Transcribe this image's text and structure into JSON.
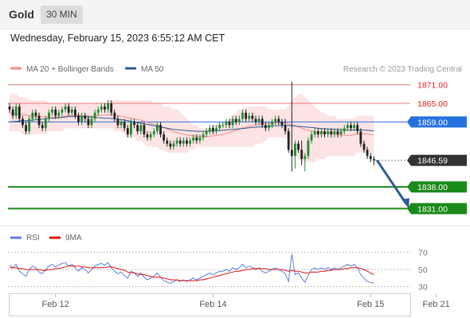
{
  "header": {
    "title": "Gold",
    "timeframe": "30 MIN",
    "datetime": "Wednesday, February 15, 2023 6:55:12 AM CET"
  },
  "colors": {
    "ma20": "#f08c8c",
    "bollinger_fill": "#fde0e0",
    "ma50": "#2e5a96",
    "resistance": "#e87777",
    "support": "#1a8a1a",
    "pivot": "#2671e0",
    "last_price": "#333333",
    "rsi": "#5b7fd6",
    "rsi_ma": "#dd1111",
    "candle_up": "#1f8a2e",
    "candle_down": "#222222",
    "arrow": "#2e5a96"
  },
  "chart_data": [
    {
      "type": "candlestick",
      "legend": [
        {
          "label": "MA 20 + Bollinger Bands",
          "color_key": "ma20"
        },
        {
          "label": "MA 50",
          "color_key": "ma50"
        }
      ],
      "legend_placement": "top-left",
      "watermark": "Research © 2023 Trading Central",
      "ylim": [
        1827,
        1874
      ],
      "x_ticks": [
        {
          "label": "Feb 12",
          "index": 14
        },
        {
          "label": "Feb 14",
          "index": 62
        },
        {
          "label": "Feb 15",
          "index": 110
        },
        {
          "label": "Feb 21",
          "index": 130
        }
      ],
      "levels": [
        {
          "name": "resistance-2",
          "value": 1871.0,
          "label": "1871.00",
          "style": "resistance"
        },
        {
          "name": "resistance-1",
          "value": 1865.0,
          "label": "1865.00",
          "style": "resistance"
        },
        {
          "name": "pivot",
          "value": 1859.0,
          "label": "1859.00",
          "style": "pivot"
        },
        {
          "name": "last-price",
          "value": 1846.59,
          "label": "1846.59",
          "style": "last"
        },
        {
          "name": "support-1",
          "value": 1838.0,
          "label": "1838.00",
          "style": "support"
        },
        {
          "name": "support-2",
          "value": 1831.0,
          "label": "1831.00",
          "style": "support"
        }
      ],
      "close": [
        1863,
        1861,
        1864,
        1860,
        1858,
        1856,
        1860,
        1862,
        1861,
        1858,
        1857,
        1860,
        1862,
        1863,
        1861,
        1862,
        1863,
        1864,
        1862,
        1863,
        1861,
        1859,
        1861,
        1860,
        1858,
        1860,
        1862,
        1863,
        1864,
        1863,
        1865,
        1862,
        1860,
        1858,
        1859,
        1857,
        1855,
        1859,
        1858,
        1856,
        1858,
        1855,
        1854,
        1855,
        1856,
        1858,
        1855,
        1853,
        1852,
        1851,
        1852,
        1853,
        1852,
        1853,
        1852,
        1853,
        1854,
        1853,
        1854,
        1855,
        1856,
        1857,
        1856,
        1857,
        1858,
        1858,
        1859,
        1858,
        1860,
        1859,
        1860,
        1862,
        1860,
        1861,
        1860,
        1859,
        1860,
        1858,
        1857,
        1858,
        1859,
        1860,
        1859,
        1858,
        1856,
        1850,
        1848,
        1852,
        1850,
        1847,
        1848,
        1853,
        1855,
        1856,
        1855,
        1856,
        1855,
        1856,
        1855,
        1856,
        1855,
        1856,
        1857,
        1858,
        1857,
        1858,
        1856,
        1852,
        1850,
        1848,
        1847,
        1846.59
      ],
      "open": [
        1864,
        1863,
        1861,
        1864,
        1860,
        1858,
        1856,
        1860,
        1862,
        1861,
        1858,
        1857,
        1860,
        1862,
        1863,
        1861,
        1862,
        1863,
        1864,
        1862,
        1863,
        1861,
        1859,
        1861,
        1860,
        1858,
        1860,
        1862,
        1863,
        1864,
        1863,
        1865,
        1862,
        1860,
        1858,
        1859,
        1857,
        1855,
        1859,
        1858,
        1856,
        1858,
        1855,
        1854,
        1855,
        1856,
        1858,
        1855,
        1853,
        1852,
        1851,
        1852,
        1853,
        1852,
        1853,
        1852,
        1853,
        1854,
        1853,
        1854,
        1855,
        1856,
        1857,
        1856,
        1857,
        1858,
        1858,
        1859,
        1858,
        1860,
        1859,
        1860,
        1862,
        1860,
        1861,
        1860,
        1859,
        1860,
        1858,
        1857,
        1858,
        1859,
        1860,
        1859,
        1858,
        1856,
        1850,
        1848,
        1852,
        1850,
        1847,
        1848,
        1853,
        1855,
        1856,
        1855,
        1856,
        1855,
        1856,
        1855,
        1856,
        1855,
        1856,
        1857,
        1858,
        1857,
        1858,
        1856,
        1852,
        1850,
        1848,
        1847
      ],
      "high": [
        1865,
        1864,
        1865,
        1865,
        1861,
        1859,
        1861,
        1863,
        1863,
        1862,
        1859,
        1861,
        1863,
        1864,
        1864,
        1863,
        1864,
        1865,
        1865,
        1864,
        1864,
        1862,
        1862,
        1862,
        1861,
        1861,
        1863,
        1864,
        1865,
        1865,
        1866,
        1866,
        1863,
        1861,
        1860,
        1860,
        1858,
        1860,
        1860,
        1859,
        1859,
        1859,
        1856,
        1856,
        1857,
        1859,
        1859,
        1856,
        1854,
        1853,
        1853,
        1854,
        1854,
        1854,
        1854,
        1854,
        1855,
        1855,
        1855,
        1856,
        1857,
        1858,
        1858,
        1858,
        1859,
        1859,
        1860,
        1860,
        1861,
        1861,
        1861,
        1863,
        1863,
        1862,
        1862,
        1861,
        1861,
        1861,
        1859,
        1859,
        1860,
        1861,
        1861,
        1860,
        1860,
        1857,
        1872,
        1853,
        1853,
        1853,
        1849,
        1854,
        1856,
        1857,
        1857,
        1857,
        1857,
        1857,
        1857,
        1857,
        1857,
        1857,
        1858,
        1859,
        1859,
        1859,
        1859,
        1857,
        1853,
        1851,
        1849,
        1848
      ],
      "low": [
        1862,
        1860,
        1860,
        1859,
        1857,
        1855,
        1855,
        1859,
        1860,
        1857,
        1856,
        1856,
        1859,
        1861,
        1860,
        1860,
        1861,
        1862,
        1861,
        1861,
        1860,
        1858,
        1858,
        1859,
        1857,
        1857,
        1859,
        1861,
        1862,
        1862,
        1862,
        1861,
        1859,
        1857,
        1857,
        1856,
        1854,
        1854,
        1857,
        1855,
        1855,
        1854,
        1853,
        1853,
        1854,
        1855,
        1854,
        1852,
        1851,
        1850,
        1850,
        1851,
        1851,
        1851,
        1851,
        1851,
        1852,
        1852,
        1852,
        1853,
        1854,
        1855,
        1855,
        1855,
        1856,
        1857,
        1857,
        1857,
        1857,
        1858,
        1858,
        1859,
        1859,
        1859,
        1859,
        1858,
        1858,
        1857,
        1856,
        1856,
        1857,
        1858,
        1858,
        1857,
        1855,
        1849,
        1843,
        1844,
        1849,
        1845,
        1843,
        1847,
        1852,
        1854,
        1854,
        1854,
        1854,
        1854,
        1854,
        1854,
        1854,
        1854,
        1855,
        1856,
        1856,
        1856,
        1855,
        1851,
        1849,
        1847,
        1846,
        1845
      ],
      "ma20": [
        1861.9,
        1861.8,
        1861.7,
        1861.6,
        1861.4,
        1861.2,
        1861.1,
        1861.0,
        1860.9,
        1860.8,
        1860.7,
        1860.6,
        1860.6,
        1860.6,
        1860.6,
        1860.6,
        1860.7,
        1860.9,
        1861.0,
        1861.1,
        1861.1,
        1861.1,
        1861.0,
        1861.0,
        1860.9,
        1860.9,
        1861.0,
        1861.1,
        1861.2,
        1861.2,
        1861.3,
        1861.3,
        1861.2,
        1861.0,
        1860.9,
        1860.6,
        1860.3,
        1860.2,
        1860.0,
        1859.8,
        1859.6,
        1859.2,
        1858.9,
        1858.5,
        1858.2,
        1858.0,
        1857.6,
        1857.2,
        1856.8,
        1856.3,
        1855.9,
        1855.6,
        1855.3,
        1855.0,
        1854.8,
        1854.6,
        1854.5,
        1854.4,
        1854.3,
        1854.3,
        1854.3,
        1854.4,
        1854.5,
        1854.6,
        1854.8,
        1855.0,
        1855.3,
        1855.6,
        1856.0,
        1856.3,
        1856.6,
        1857.0,
        1857.3,
        1857.6,
        1857.8,
        1858.0,
        1858.2,
        1858.4,
        1858.5,
        1858.6,
        1858.6,
        1858.7,
        1858.7,
        1858.7,
        1858.7,
        1858.4,
        1858.0,
        1857.8,
        1857.4,
        1857.0,
        1856.6,
        1856.3,
        1856.1,
        1855.9,
        1855.8,
        1855.6,
        1855.5,
        1855.4,
        1855.2,
        1855.1,
        1854.9,
        1854.8,
        1854.7,
        1854.6,
        1854.7,
        1854.9,
        1855.1,
        1855.1,
        1855.1,
        1855.1,
        1855.0,
        1854.8
      ],
      "bb_upper": [
        1868,
        1868,
        1868,
        1867,
        1867,
        1867,
        1866,
        1866,
        1866,
        1866,
        1866,
        1866,
        1865,
        1865,
        1865,
        1865,
        1865,
        1865,
        1865,
        1865,
        1865,
        1865,
        1865,
        1865,
        1865,
        1865,
        1865,
        1865,
        1865,
        1865,
        1866,
        1866,
        1866,
        1866,
        1866,
        1866,
        1866,
        1866,
        1866,
        1866,
        1866,
        1866,
        1866,
        1866,
        1865,
        1865,
        1865,
        1864,
        1864,
        1864,
        1863,
        1863,
        1862,
        1861,
        1860,
        1859,
        1858,
        1858,
        1857,
        1857,
        1857,
        1857,
        1858,
        1858,
        1858,
        1859,
        1859,
        1860,
        1861,
        1862,
        1863,
        1863,
        1864,
        1864,
        1864,
        1864,
        1864,
        1864,
        1864,
        1863,
        1863,
        1863,
        1863,
        1863,
        1863,
        1864,
        1866,
        1867,
        1868,
        1868,
        1867,
        1866,
        1865,
        1864,
        1863,
        1862,
        1862,
        1861,
        1861,
        1861,
        1860,
        1860,
        1860,
        1860,
        1860,
        1860,
        1861,
        1861,
        1861,
        1861,
        1861,
        1861
      ],
      "bb_lower": [
        1856,
        1856,
        1856,
        1856,
        1855,
        1855,
        1855,
        1855,
        1855,
        1855,
        1855,
        1855,
        1856,
        1856,
        1856,
        1856,
        1856,
        1857,
        1857,
        1857,
        1857,
        1857,
        1857,
        1857,
        1857,
        1857,
        1857,
        1857,
        1857,
        1857,
        1857,
        1857,
        1856,
        1856,
        1856,
        1855,
        1854,
        1854,
        1854,
        1853,
        1853,
        1852,
        1851,
        1851,
        1851,
        1851,
        1850,
        1850,
        1849,
        1849,
        1849,
        1849,
        1849,
        1849,
        1849,
        1850,
        1850,
        1851,
        1851,
        1851,
        1851,
        1851,
        1851,
        1851,
        1851,
        1851,
        1851,
        1851,
        1851,
        1851,
        1851,
        1851,
        1851,
        1851,
        1851,
        1852,
        1852,
        1852,
        1853,
        1854,
        1854,
        1854,
        1854,
        1854,
        1854,
        1853,
        1850,
        1848,
        1847,
        1846,
        1846,
        1846,
        1846,
        1846,
        1847,
        1847,
        1847,
        1848,
        1848,
        1848,
        1848,
        1848,
        1848,
        1848,
        1848,
        1848,
        1849,
        1849,
        1849,
        1849,
        1849,
        1848
      ],
      "ma50": [
        1859.0,
        1859.1,
        1859.2,
        1859.3,
        1859.4,
        1859.4,
        1859.5,
        1859.6,
        1859.7,
        1859.8,
        1859.9,
        1860.0,
        1860.1,
        1860.2,
        1860.3,
        1860.4,
        1860.5,
        1860.6,
        1860.7,
        1860.7,
        1860.8,
        1860.8,
        1860.8,
        1860.7,
        1860.6,
        1860.6,
        1860.5,
        1860.4,
        1860.3,
        1860.2,
        1860.2,
        1860.1,
        1860.0,
        1859.9,
        1859.8,
        1859.6,
        1859.4,
        1859.2,
        1859.0,
        1858.8,
        1858.6,
        1858.4,
        1858.2,
        1858.0,
        1857.8,
        1857.6,
        1857.4,
        1857.2,
        1857.0,
        1856.8,
        1856.6,
        1856.5,
        1856.4,
        1856.3,
        1856.2,
        1856.1,
        1856.1,
        1856.0,
        1856.0,
        1856.0,
        1856.0,
        1856.0,
        1856.1,
        1856.1,
        1856.2,
        1856.3,
        1856.4,
        1856.5,
        1856.6,
        1856.7,
        1856.8,
        1856.9,
        1857.0,
        1857.1,
        1857.2,
        1857.3,
        1857.4,
        1857.5,
        1857.6,
        1857.7,
        1857.7,
        1857.8,
        1857.8,
        1857.9,
        1857.9,
        1857.9,
        1857.8,
        1857.7,
        1857.6,
        1857.5,
        1857.4,
        1857.3,
        1857.2,
        1857.1,
        1857.0,
        1856.9,
        1856.8,
        1856.7,
        1856.6,
        1856.6,
        1856.5,
        1856.5,
        1856.4,
        1856.4,
        1856.4,
        1856.4,
        1856.4,
        1856.4,
        1856.4,
        1856.3,
        1856.2,
        1856.1
      ],
      "forecast": {
        "from_value": 1846.59,
        "to_value": 1831.0
      }
    },
    {
      "type": "line",
      "legend": [
        {
          "label": "RSI",
          "color_key": "rsi"
        },
        {
          "label": "9MA",
          "color_key": "rsi_ma"
        }
      ],
      "ylim": [
        25,
        75
      ],
      "y_ticks": [
        70,
        50,
        30
      ],
      "rsi": [
        55,
        52,
        56,
        48,
        45,
        42,
        50,
        54,
        52,
        47,
        45,
        50,
        54,
        56,
        53,
        55,
        57,
        58,
        54,
        56,
        52,
        48,
        52,
        50,
        46,
        50,
        54,
        56,
        57,
        55,
        58,
        52,
        48,
        45,
        47,
        43,
        40,
        48,
        46,
        42,
        46,
        41,
        38,
        40,
        42,
        46,
        41,
        37,
        35,
        34,
        36,
        38,
        36,
        38,
        36,
        38,
        40,
        38,
        40,
        42,
        44,
        46,
        44,
        46,
        48,
        48,
        50,
        48,
        52,
        50,
        52,
        56,
        52,
        54,
        52,
        50,
        52,
        48,
        46,
        48,
        50,
        52,
        50,
        48,
        45,
        36,
        68,
        44,
        46,
        40,
        35,
        44,
        50,
        52,
        50,
        52,
        50,
        52,
        50,
        52,
        50,
        52,
        54,
        56,
        54,
        56,
        52,
        44,
        40,
        36,
        35,
        34
      ],
      "rsi_ma": [
        52,
        52,
        52,
        51,
        51,
        50,
        50,
        50,
        50,
        50,
        49,
        49,
        50,
        50,
        51,
        51,
        52,
        53,
        54,
        54,
        54,
        54,
        53,
        53,
        52,
        52,
        52,
        52,
        52,
        52,
        53,
        53,
        52,
        51,
        50,
        49,
        47,
        46,
        46,
        45,
        44,
        44,
        43,
        42,
        41,
        41,
        41,
        40,
        39,
        38,
        38,
        38,
        37,
        37,
        37,
        37,
        37,
        37,
        38,
        38,
        39,
        40,
        41,
        42,
        43,
        44,
        45,
        46,
        47,
        48,
        48,
        49,
        50,
        50,
        51,
        51,
        51,
        51,
        51,
        50,
        50,
        50,
        50,
        50,
        49,
        48,
        49,
        48,
        48,
        47,
        46,
        46,
        47,
        47,
        47,
        48,
        48,
        49,
        49,
        50,
        50,
        50,
        51,
        51,
        52,
        52,
        52,
        51,
        50,
        48,
        46,
        44
      ]
    }
  ]
}
